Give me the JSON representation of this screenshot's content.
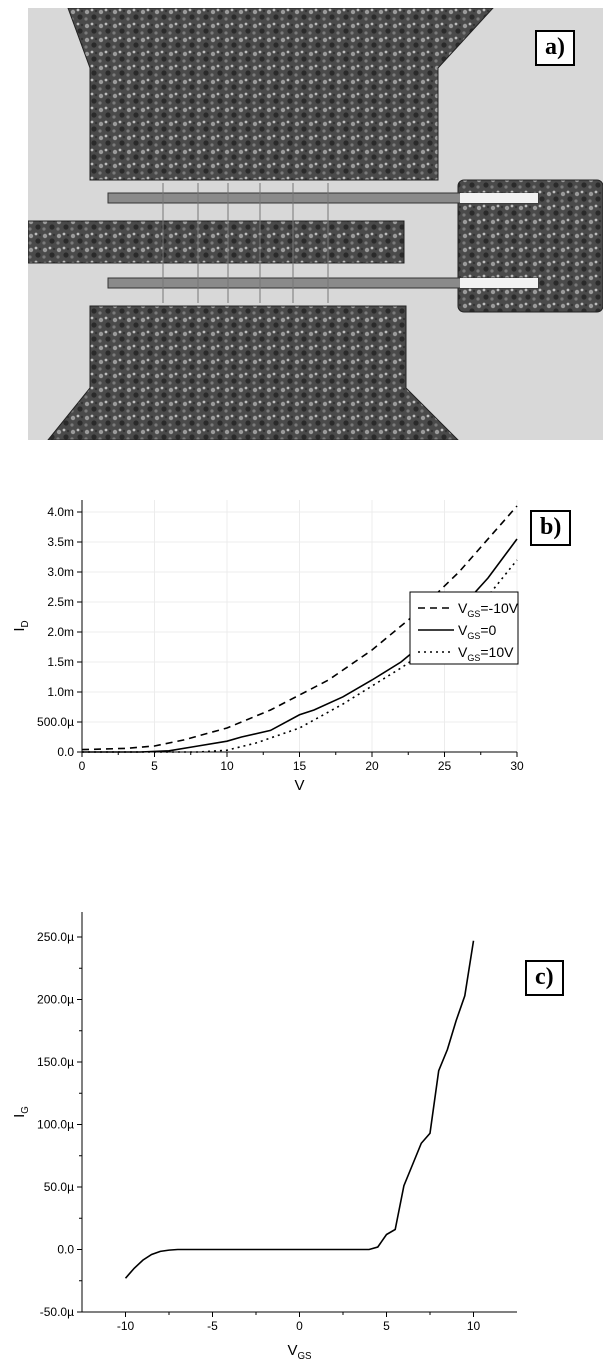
{
  "panels": {
    "a": {
      "label": "a)"
    },
    "b": {
      "label": "b)"
    },
    "c": {
      "label": "c)"
    }
  },
  "chart_data": [
    {
      "type": "line",
      "title": "",
      "xlabel": "V",
      "ylabel": "I",
      "ylabel_sub": "D",
      "xlim": [
        0,
        30
      ],
      "ylim": [
        0,
        0.0042
      ],
      "xticks": [
        0,
        5,
        10,
        15,
        20,
        25,
        30
      ],
      "yticks": [
        0,
        0.0005,
        0.001,
        0.0015,
        0.002,
        0.0025,
        0.003,
        0.0035,
        0.004
      ],
      "ytick_labels": [
        "0.0",
        "500.0µ",
        "1.0m",
        "1.5m",
        "2.0m",
        "2.5m",
        "3.0m",
        "3.5m",
        "4.0m"
      ],
      "grid": true,
      "legend_position": "middle-right",
      "series": [
        {
          "name": "V",
          "name_sub": "GS",
          "name_suffix": "=-10V",
          "style": "dashed",
          "x": [
            0,
            3,
            5,
            7,
            10,
            13,
            15,
            17,
            20,
            23,
            26,
            30
          ],
          "y": [
            4e-05,
            6e-05,
            0.0001,
            0.0002,
            0.0004,
            0.0007,
            0.00095,
            0.0012,
            0.0017,
            0.0023,
            0.003,
            0.0041
          ]
        },
        {
          "name": "V",
          "name_sub": "GS",
          "name_suffix": "=0",
          "style": "solid",
          "x": [
            0,
            4,
            6,
            8,
            10,
            11,
            13,
            15,
            16,
            18,
            20,
            22,
            25,
            28,
            30
          ],
          "y": [
            0,
            0,
            2e-05,
            0.0001,
            0.00018,
            0.00025,
            0.00036,
            0.00062,
            0.0007,
            0.00092,
            0.0012,
            0.0015,
            0.0021,
            0.0029,
            0.00355
          ]
        },
        {
          "name": "V",
          "name_sub": "GS",
          "name_suffix": "=10V",
          "style": "dotted",
          "x": [
            0,
            5,
            8,
            10,
            12,
            15,
            18,
            20,
            22,
            25,
            28,
            30
          ],
          "y": [
            0,
            0,
            0,
            3e-05,
            0.00015,
            0.0004,
            0.0008,
            0.0011,
            0.0014,
            0.0019,
            0.0026,
            0.0032
          ]
        }
      ]
    },
    {
      "type": "line",
      "title": "",
      "xlabel": "V",
      "xlabel_sub": "GS",
      "ylabel": "I",
      "ylabel_sub": "G",
      "xlim": [
        -12.5,
        12.5
      ],
      "ylim": [
        -5e-05,
        0.00027
      ],
      "xticks": [
        -10,
        -5,
        0,
        5,
        10
      ],
      "yticks": [
        -5e-05,
        0,
        5e-05,
        0.0001,
        0.00015,
        0.0002,
        0.00025
      ],
      "ytick_labels": [
        "-50.0µ",
        "0.0",
        "50.0µ",
        "100.0µ",
        "150.0µ",
        "200.0µ",
        "250.0µ"
      ],
      "grid": false,
      "series": [
        {
          "style": "solid",
          "x": [
            -10,
            -9.5,
            -9,
            -8.5,
            -8,
            -7.5,
            -7,
            -6,
            -5,
            0,
            4,
            4.5,
            5,
            5.5,
            6,
            6.5,
            7,
            7.5,
            8,
            8.5,
            9,
            9.5,
            10
          ],
          "y": [
            -2.3e-05,
            -1.5e-05,
            -8.5e-06,
            -4e-06,
            -1.5e-06,
            -5e-07,
            0,
            0,
            0,
            0,
            0,
            2e-06,
            1.2e-05,
            1.6e-05,
            5.1e-05,
            6.8e-05,
            8.5e-05,
            9.3e-05,
            0.000143,
            0.00016,
            0.000183,
            0.000203,
            0.000247
          ]
        }
      ]
    }
  ]
}
